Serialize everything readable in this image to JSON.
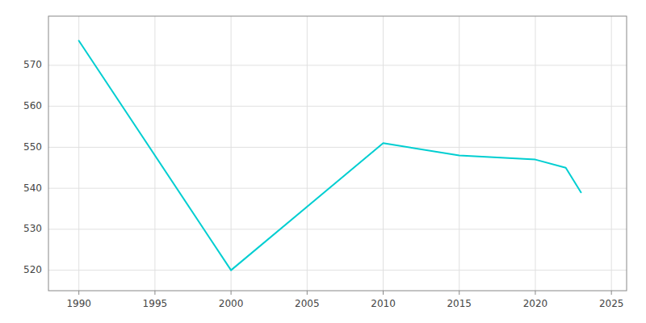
{
  "chart_data": {
    "type": "line",
    "x": [
      1990,
      2000,
      2010,
      2015,
      2020,
      2022,
      2023
    ],
    "values": [
      576,
      520,
      551,
      548,
      547,
      545,
      539
    ],
    "color": "#00CED1",
    "xlim": [
      1988,
      2026
    ],
    "ylim": [
      515,
      582
    ],
    "xticks": [
      1990,
      1995,
      2000,
      2005,
      2010,
      2015,
      2020,
      2025
    ],
    "yticks": [
      520,
      530,
      540,
      550,
      560,
      570
    ],
    "grid": true
  }
}
